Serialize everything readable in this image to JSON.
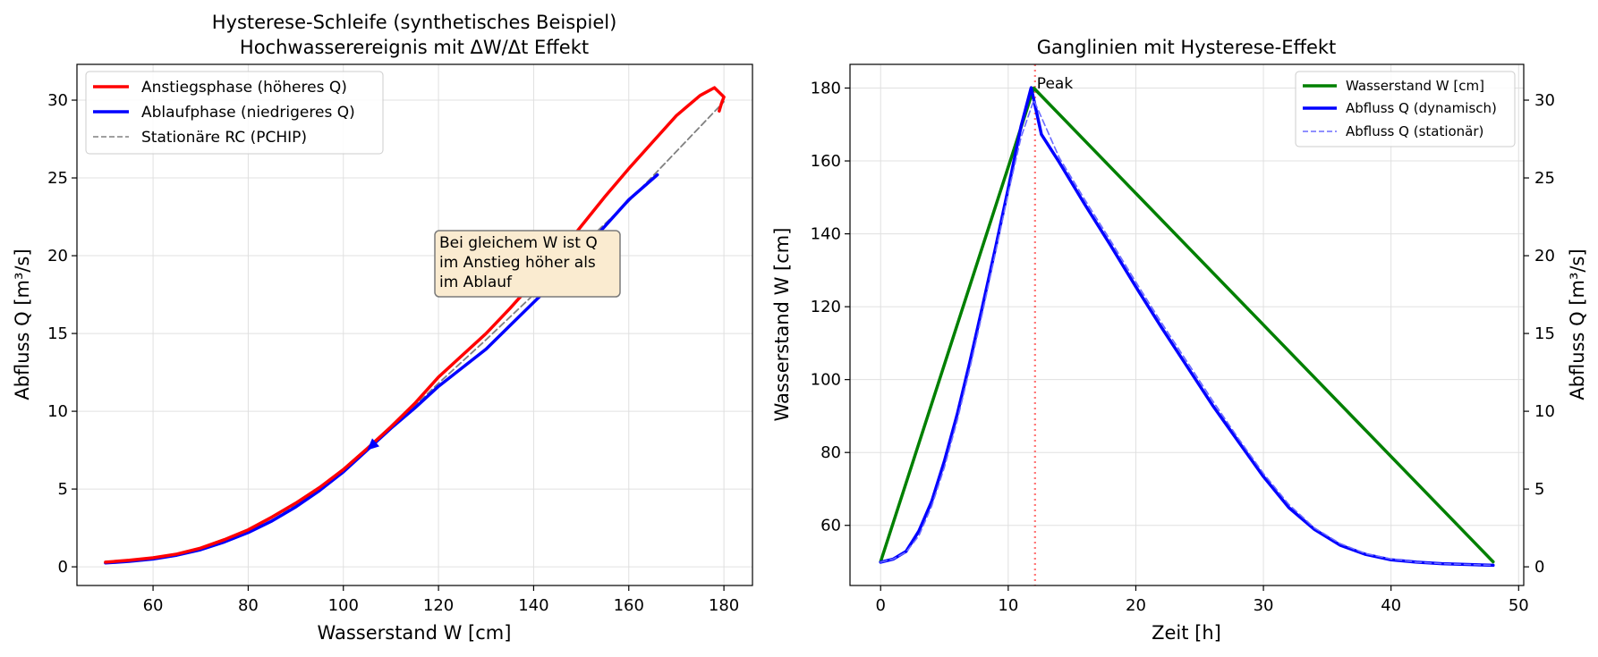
{
  "chart_data": [
    {
      "type": "line",
      "title": "Hysterese-Schleife (synthetisches Beispiel)",
      "subtitle": "Hochwasserereignis mit ΔW/Δt Effekt",
      "xlabel": "Wasserstand W [cm]",
      "ylabel": "Abfluss Q [m³/s]",
      "xlim": [
        44,
        186
      ],
      "ylim": [
        -1.2,
        32.3
      ],
      "xticks": [
        60,
        80,
        100,
        120,
        140,
        160,
        180
      ],
      "yticks": [
        0,
        5,
        10,
        15,
        20,
        25,
        30
      ],
      "grid": true,
      "legend_position": "top-left",
      "annotation": {
        "lines": [
          "Bei gleichem W ist Q",
          "im Anstieg höher als",
          "im Ablauf"
        ],
        "x": 120,
        "y": 22.0
      },
      "series": [
        {
          "name": "Anstiegsphase (höheres Q)",
          "color": "#ff0000",
          "style": "solid",
          "x": [
            50,
            55,
            60,
            65,
            70,
            75,
            80,
            85,
            90,
            95,
            100,
            105,
            110,
            115,
            120,
            125,
            130,
            135,
            140,
            145,
            150,
            155,
            160,
            165,
            170,
            175,
            178,
            180,
            179.5,
            179
          ],
          "y": [
            0.3,
            0.42,
            0.58,
            0.82,
            1.2,
            1.75,
            2.38,
            3.2,
            4.1,
            5.1,
            6.25,
            7.6,
            9.0,
            10.5,
            12.2,
            13.6,
            15.0,
            16.6,
            18.3,
            20.0,
            21.9,
            23.8,
            25.6,
            27.3,
            29.0,
            30.3,
            30.8,
            30.2,
            29.8,
            29.3
          ]
        },
        {
          "name": "Ablaufphase (niedrigeres Q)",
          "color": "#0000ff",
          "style": "solid",
          "x": [
            166,
            160,
            155,
            150,
            145,
            140,
            135,
            130,
            125,
            120,
            115,
            110,
            105,
            100,
            95,
            90,
            85,
            80,
            75,
            70,
            65,
            60,
            55,
            50
          ],
          "y": [
            25.2,
            23.6,
            21.9,
            20.2,
            18.5,
            17.0,
            15.5,
            14.0,
            12.8,
            11.6,
            10.2,
            8.9,
            7.5,
            6.1,
            4.9,
            3.85,
            2.95,
            2.2,
            1.6,
            1.1,
            0.75,
            0.5,
            0.35,
            0.25
          ]
        },
        {
          "name": "Stationäre RC (PCHIP)",
          "color": "#808080",
          "style": "dashed",
          "x": [
            50,
            60,
            70,
            80,
            90,
            100,
            110,
            120,
            130,
            140,
            150,
            160,
            170,
            180
          ],
          "y": [
            0.28,
            0.52,
            1.15,
            2.3,
            4.0,
            6.2,
            8.9,
            11.8,
            14.6,
            17.5,
            20.6,
            23.5,
            26.7,
            29.9
          ]
        }
      ]
    },
    {
      "type": "line",
      "title": "Ganglinien mit Hysterese-Effekt",
      "xlabel": "Zeit [h]",
      "ylabel": "Wasserstand W [cm]",
      "ylabel_right": "Abfluss Q [m³/s]",
      "xlim": [
        -2.4,
        50.4
      ],
      "ylim": [
        43.5,
        186.5
      ],
      "ylim_right": [
        -1.2,
        32.3
      ],
      "xticks": [
        0,
        10,
        20,
        30,
        40,
        50
      ],
      "yticks": [
        60,
        80,
        100,
        120,
        140,
        160,
        180
      ],
      "yticks_right": [
        0,
        5,
        10,
        15,
        20,
        25,
        30
      ],
      "grid": true,
      "legend_position": "top-right",
      "peak": {
        "x": 12.1,
        "label": "Peak",
        "color": "#ff0000"
      },
      "series": [
        {
          "name": "Wasserstand W [cm]",
          "color": "#008000",
          "style": "solid",
          "axis": "left",
          "x": [
            0,
            12,
            48
          ],
          "y": [
            50,
            180,
            50
          ]
        },
        {
          "name": "Abfluss Q (dynamisch)",
          "color": "#0000ff",
          "style": "solid",
          "axis": "right",
          "x": [
            0,
            1,
            2,
            3,
            4,
            5,
            6,
            7,
            8,
            9,
            10,
            11,
            11.8,
            12.2,
            12.6,
            14,
            16,
            18,
            20,
            22,
            24,
            26,
            28,
            30,
            32,
            34,
            36,
            38,
            40,
            42,
            44,
            46,
            48
          ],
          "y": [
            0.3,
            0.5,
            1.0,
            2.3,
            4.2,
            6.8,
            9.8,
            13.2,
            16.8,
            20.5,
            24.3,
            28.3,
            30.8,
            29.3,
            27.8,
            26.0,
            23.3,
            20.7,
            18.0,
            15.4,
            12.9,
            10.4,
            8.1,
            5.8,
            3.8,
            2.4,
            1.4,
            0.8,
            0.45,
            0.3,
            0.2,
            0.15,
            0.1
          ]
        },
        {
          "name": "Abfluss Q (stationär)",
          "color": "#6b6bff",
          "style": "dashed",
          "axis": "right",
          "x": [
            0,
            1,
            2,
            3,
            4,
            5,
            6,
            7,
            8,
            9,
            10,
            11,
            12,
            14,
            16,
            18,
            20,
            22,
            24,
            26,
            28,
            30,
            32,
            34,
            36,
            38,
            40,
            42,
            44,
            46,
            48
          ],
          "y": [
            0.3,
            0.5,
            0.95,
            2.0,
            3.9,
            6.4,
            9.4,
            12.8,
            16.4,
            20.2,
            24.0,
            27.6,
            30.0,
            26.3,
            23.6,
            21.0,
            18.3,
            15.7,
            13.2,
            10.7,
            8.3,
            6.0,
            4.0,
            2.5,
            1.5,
            0.85,
            0.5,
            0.3,
            0.2,
            0.15,
            0.1
          ]
        }
      ]
    }
  ]
}
